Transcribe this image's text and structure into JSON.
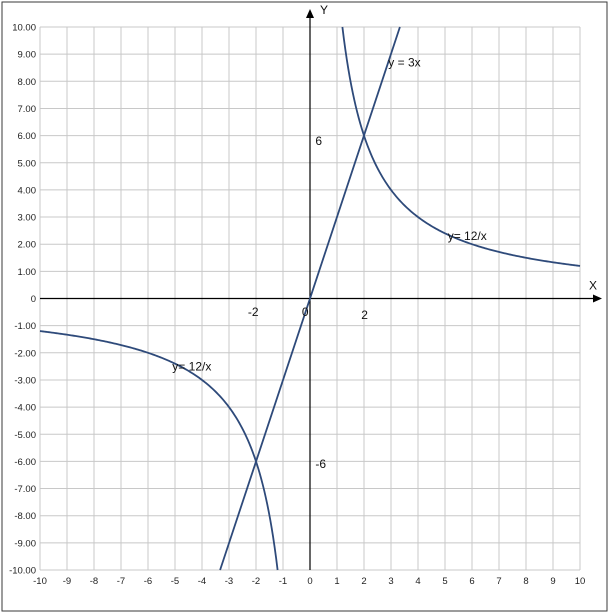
{
  "chart_data": {
    "type": "line",
    "xlim": [
      -10,
      10
    ],
    "ylim": [
      -10,
      10
    ],
    "x_ticks": [
      -10,
      -9,
      -8,
      -7,
      -6,
      -5,
      -4,
      -3,
      -2,
      -1,
      0,
      1,
      2,
      3,
      4,
      5,
      6,
      7,
      8,
      9,
      10
    ],
    "x_tick_labels": [
      "-10",
      "-9",
      "-8",
      "-7",
      "-6",
      "-5",
      "-4",
      "-3",
      "-2",
      "-1",
      "0",
      "1",
      "2",
      "3",
      "4",
      "5",
      "6",
      "7",
      "8",
      "9",
      "10"
    ],
    "y_ticks": [
      -10,
      -9,
      -8,
      -7,
      -6,
      -5,
      -4,
      -3,
      -2,
      -1,
      0,
      1,
      2,
      3,
      4,
      5,
      6,
      7,
      8,
      9,
      10
    ],
    "y_tick_labels": [
      "-10.00",
      "-9.00",
      "-8.00",
      "-7.00",
      "-6.00",
      "-5.00",
      "-4.00",
      "-3.00",
      "-2.00",
      "-1.00",
      "0",
      "1.00",
      "2.00",
      "3.00",
      "4.00",
      "5.00",
      "6.00",
      "7.00",
      "8.00",
      "9.00",
      "10.00"
    ],
    "xlabel": "X",
    "ylabel": "Y",
    "grid": true,
    "colors": {
      "curve": "#2e4a7a",
      "grid": "#c8c8c8",
      "axis": "#000000",
      "frame": "#3a3a3a"
    },
    "series": [
      {
        "formula": "y = 3x",
        "slope": 3,
        "x": [
          -3.33,
          3.33
        ],
        "y": [
          -10,
          10
        ]
      },
      {
        "formula": "y = 12/x",
        "branches": [
          {
            "x": [
              1.2,
              1.5,
              2,
              3,
              4,
              6,
              8,
              10
            ],
            "y": [
              10,
              8,
              6,
              4,
              3,
              2,
              1.5,
              1.2
            ]
          },
          {
            "x": [
              -10,
              -8,
              -6,
              -4,
              -3,
              -2,
              -1.5,
              -1.2
            ],
            "y": [
              -1.2,
              -1.5,
              -2,
              -3,
              -4,
              -6,
              -8,
              -10
            ]
          }
        ]
      }
    ],
    "annotations": [
      {
        "text": "y = 3x",
        "x": 2.9,
        "y": 8.7
      },
      {
        "text": "y= 12/x",
        "x": 5.1,
        "y": 2.3
      },
      {
        "text": "y= 12/x",
        "x": -5.1,
        "y": -2.5
      },
      {
        "text": "6",
        "x": 0.2,
        "y": 5.8
      },
      {
        "text": "-6",
        "x": 0.2,
        "y": -6.1
      },
      {
        "text": "2",
        "x": 1.9,
        "y": -0.6
      },
      {
        "text": "-2",
        "x": -2.3,
        "y": -0.5
      },
      {
        "text": "0",
        "x": -0.3,
        "y": -0.5
      }
    ]
  }
}
